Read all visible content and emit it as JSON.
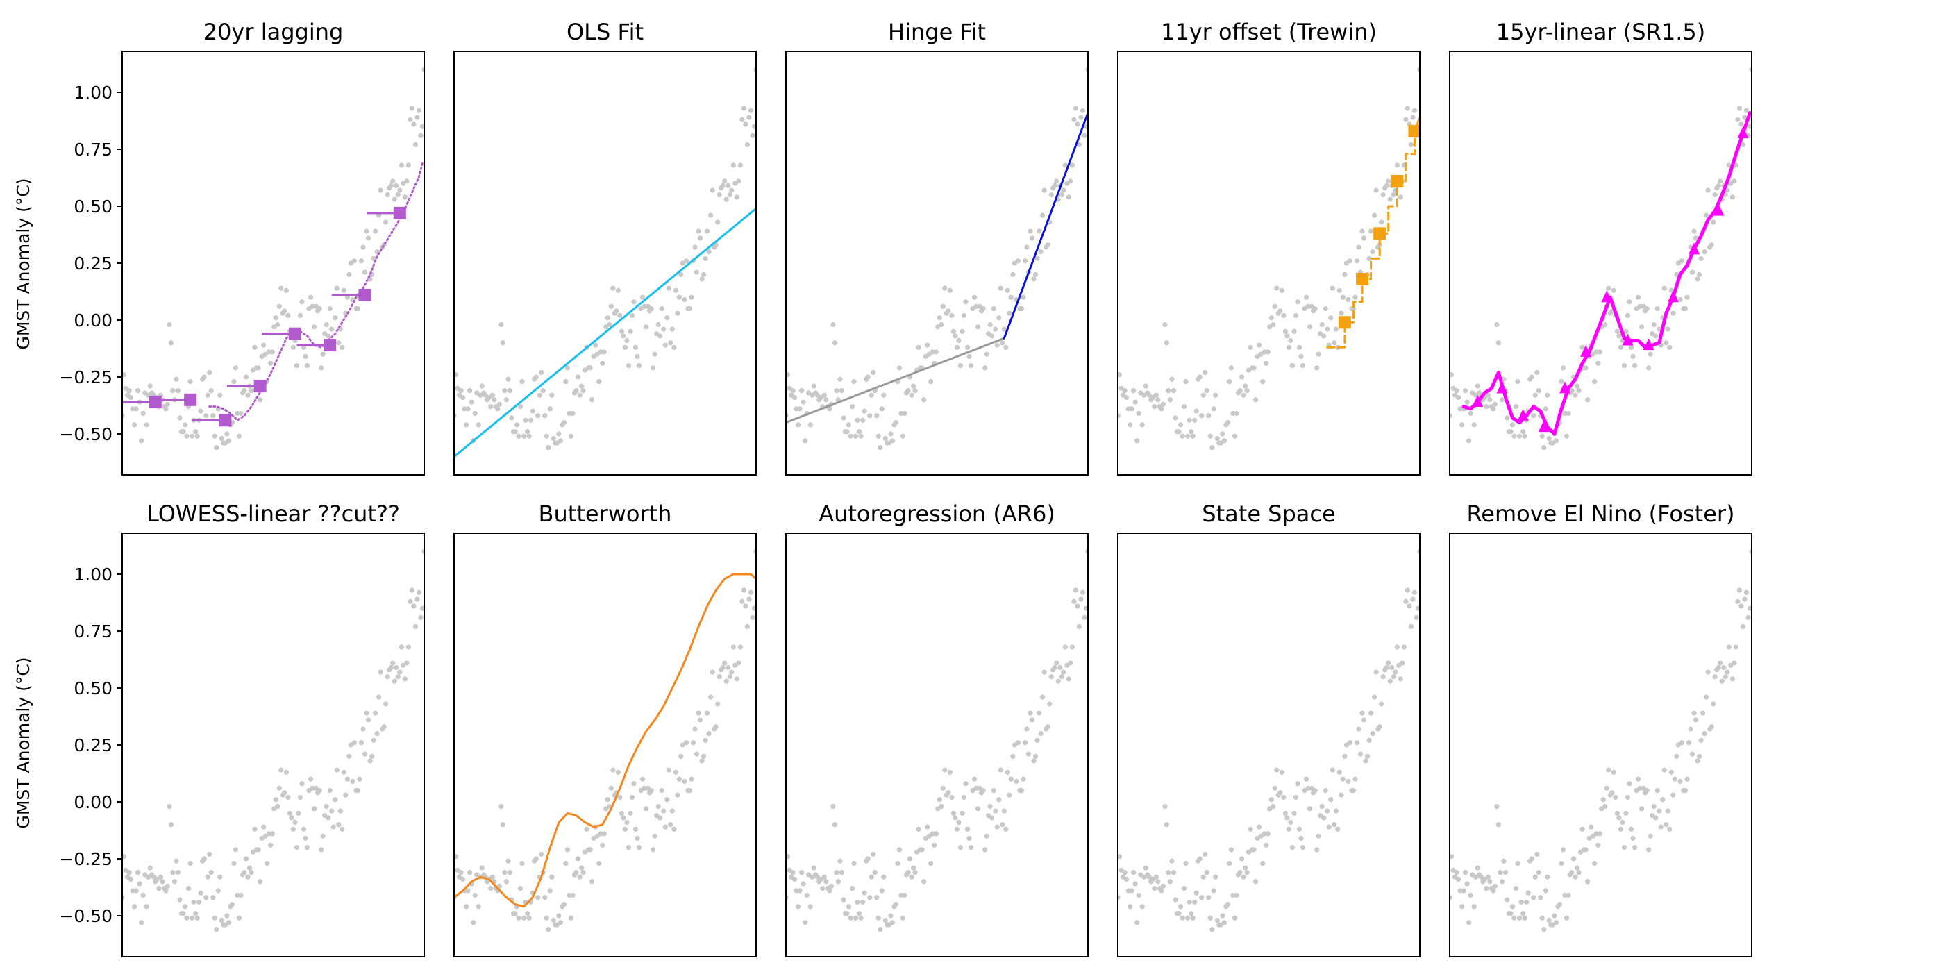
{
  "figure": {
    "xrange": [
      1850,
      2023
    ],
    "ylim": [
      -0.68,
      1.18
    ],
    "yticks": [
      -0.5,
      -0.25,
      0.0,
      0.25,
      0.5,
      0.75,
      1.0
    ],
    "ytick_labels": [
      "−0.50",
      "−0.25",
      "0.00",
      "0.25",
      "0.50",
      "0.75",
      "1.00"
    ],
    "ylabel": "GMST Anomaly (°C)",
    "background_points_color": "#c8c8c8"
  },
  "chart_data": {
    "type": "scatter",
    "observations": {
      "x": [
        1850,
        1851,
        1852,
        1853,
        1854,
        1855,
        1856,
        1857,
        1858,
        1859,
        1860,
        1861,
        1862,
        1863,
        1864,
        1865,
        1866,
        1867,
        1868,
        1869,
        1870,
        1871,
        1872,
        1873,
        1874,
        1875,
        1876,
        1877,
        1878,
        1879,
        1880,
        1881,
        1882,
        1883,
        1884,
        1885,
        1886,
        1887,
        1888,
        1889,
        1890,
        1891,
        1892,
        1893,
        1894,
        1895,
        1896,
        1897,
        1898,
        1899,
        1900,
        1901,
        1902,
        1903,
        1904,
        1905,
        1906,
        1907,
        1908,
        1909,
        1910,
        1911,
        1912,
        1913,
        1914,
        1915,
        1916,
        1917,
        1918,
        1919,
        1920,
        1921,
        1922,
        1923,
        1924,
        1925,
        1926,
        1927,
        1928,
        1929,
        1930,
        1931,
        1932,
        1933,
        1934,
        1935,
        1936,
        1937,
        1938,
        1939,
        1940,
        1941,
        1942,
        1943,
        1944,
        1945,
        1946,
        1947,
        1948,
        1949,
        1950,
        1951,
        1952,
        1953,
        1954,
        1955,
        1956,
        1957,
        1958,
        1959,
        1960,
        1961,
        1962,
        1963,
        1964,
        1965,
        1966,
        1967,
        1968,
        1969,
        1970,
        1971,
        1972,
        1973,
        1974,
        1975,
        1976,
        1977,
        1978,
        1979,
        1980,
        1981,
        1982,
        1983,
        1984,
        1985,
        1986,
        1987,
        1988,
        1989,
        1990,
        1991,
        1992,
        1993,
        1994,
        1995,
        1996,
        1997,
        1998,
        1999,
        2000,
        2001,
        2002,
        2003,
        2004,
        2005,
        2006,
        2007,
        2008,
        2009,
        2010,
        2011,
        2012,
        2013,
        2014,
        2015,
        2016,
        2017,
        2018,
        2019,
        2020,
        2021,
        2022,
        2023
      ],
      "y": [
        -0.42,
        -0.24,
        -0.3,
        -0.33,
        -0.31,
        -0.34,
        -0.39,
        -0.46,
        -0.39,
        -0.31,
        -0.36,
        -0.53,
        -0.41,
        -0.32,
        -0.46,
        -0.33,
        -0.29,
        -0.32,
        -0.33,
        -0.35,
        -0.34,
        -0.38,
        -0.33,
        -0.35,
        -0.38,
        -0.39,
        -0.37,
        -0.02,
        -0.1,
        -0.31,
        -0.35,
        -0.26,
        -0.31,
        -0.43,
        -0.49,
        -0.49,
        -0.46,
        -0.51,
        -0.38,
        -0.27,
        -0.51,
        -0.44,
        -0.49,
        -0.51,
        -0.44,
        -0.4,
        -0.26,
        -0.25,
        -0.42,
        -0.33,
        -0.23,
        -0.31,
        -0.42,
        -0.51,
        -0.56,
        -0.39,
        -0.33,
        -0.52,
        -0.54,
        -0.54,
        -0.5,
        -0.53,
        -0.46,
        -0.45,
        -0.27,
        -0.21,
        -0.41,
        -0.51,
        -0.41,
        -0.32,
        -0.31,
        -0.25,
        -0.33,
        -0.29,
        -0.31,
        -0.22,
        -0.12,
        -0.21,
        -0.21,
        -0.35,
        -0.16,
        -0.11,
        -0.15,
        -0.27,
        -0.14,
        -0.19,
        -0.14,
        -0.03,
        0.01,
        -0.02,
        0.06,
        0.14,
        0.03,
        0.04,
        0.13,
        0.02,
        -0.05,
        -0.07,
        -0.12,
        -0.09,
        -0.2,
        -0.05,
        0.02,
        0.08,
        -0.12,
        -0.16,
        -0.2,
        0.05,
        0.1,
        0.06,
        -0.03,
        0.06,
        0.04,
        0.05,
        -0.21,
        -0.15,
        -0.06,
        -0.02,
        -0.07,
        0.05,
        -0.04,
        -0.11,
        0.01,
        0.14,
        -0.1,
        -0.04,
        -0.12,
        0.13,
        0.03,
        0.1,
        0.2,
        0.25,
        0.09,
        0.26,
        0.05,
        0.05,
        0.1,
        0.26,
        0.32,
        0.21,
        0.39,
        0.36,
        0.18,
        0.2,
        0.27,
        0.39,
        0.3,
        0.46,
        0.57,
        0.32,
        0.33,
        0.43,
        0.55,
        0.58,
        0.59,
        0.61,
        0.53,
        0.59,
        0.55,
        0.57,
        0.68,
        0.6,
        0.54,
        0.61,
        0.68,
        0.88,
        0.93,
        0.86,
        0.77,
        0.89,
        0.92,
        0.81,
        0.85,
        1.1
      ]
    },
    "panels": [
      {
        "title": "20yr lagging",
        "color": "#b15acd",
        "lines": [
          {
            "x": [
              1900,
              1904,
              1908,
              1912,
              1916,
              1920,
              1924,
              1928,
              1932,
              1936,
              1940,
              1944,
              1948,
              1952,
              1956,
              1960,
              1964,
              1968,
              1972,
              1976,
              1980,
              1984,
              1988,
              1992,
              1996,
              2000,
              2004,
              2008,
              2012,
              2016,
              2020,
              2022
            ],
            "y": [
              -0.38,
              -0.38,
              -0.39,
              -0.41,
              -0.44,
              -0.42,
              -0.38,
              -0.33,
              -0.28,
              -0.22,
              -0.15,
              -0.08,
              -0.05,
              -0.05,
              -0.07,
              -0.11,
              -0.12,
              -0.09,
              -0.06,
              -0.01,
              0.04,
              0.1,
              0.14,
              0.2,
              0.28,
              0.33,
              0.38,
              0.43,
              0.49,
              0.56,
              0.63,
              0.69
            ],
            "width": 3,
            "dash": "2,4"
          }
        ],
        "segments": [
          {
            "x0": 1850,
            "x1": 1869,
            "y": -0.36
          },
          {
            "x0": 1870,
            "x1": 1889,
            "y": -0.35
          },
          {
            "x0": 1890,
            "x1": 1909,
            "y": -0.44
          },
          {
            "x0": 1910,
            "x1": 1929,
            "y": -0.29
          },
          {
            "x0": 1930,
            "x1": 1949,
            "y": -0.06
          },
          {
            "x0": 1950,
            "x1": 1969,
            "y": -0.11
          },
          {
            "x0": 1970,
            "x1": 1989,
            "y": 0.11
          },
          {
            "x0": 1990,
            "x1": 2009,
            "y": 0.47
          }
        ],
        "squares": {
          "x": [
            1869,
            1889,
            1909,
            1929,
            1949,
            1969,
            1989,
            2009
          ],
          "y": [
            -0.36,
            -0.35,
            -0.44,
            -0.29,
            -0.06,
            -0.11,
            0.11,
            0.47
          ]
        }
      },
      {
        "title": "OLS Fit",
        "color": "#16bfee",
        "lines": [
          {
            "x": [
              1850,
              2023
            ],
            "y": [
              -0.6,
              0.49
            ],
            "width": 3
          }
        ]
      },
      {
        "title": "Hinge Fit",
        "color": "#0a10d8",
        "lines": [
          {
            "x": [
              1850,
              1975
            ],
            "y": [
              -0.45,
              -0.08
            ],
            "width": 3,
            "color": "#999999"
          },
          {
            "x": [
              1975,
              2023
            ],
            "y": [
              -0.08,
              0.91
            ],
            "width": 3
          }
        ]
      },
      {
        "title": "11yr offset (Trewin)",
        "color": "#f5a00f",
        "lines": [
          {
            "x": [
              1970,
              1980,
              1980,
              1985,
              1985,
              1990,
              1990,
              1995,
              1995,
              2000,
              2000,
              2005,
              2005,
              2010,
              2010,
              2015,
              2015,
              2020,
              2020,
              2023
            ],
            "y": [
              -0.12,
              -0.12,
              -0.01,
              -0.01,
              0.08,
              0.08,
              0.18,
              0.18,
              0.27,
              0.27,
              0.38,
              0.38,
              0.5,
              0.5,
              0.61,
              0.61,
              0.73,
              0.73,
              0.83,
              0.89
            ],
            "width": 3,
            "dash": "10,6"
          }
        ],
        "squares": {
          "x": [
            1980,
            1990,
            2000,
            2010,
            2020
          ],
          "y": [
            -0.01,
            0.18,
            0.38,
            0.61,
            0.83
          ]
        }
      },
      {
        "title": "15yr-linear (SR1.5)",
        "color": "#ff00ff",
        "lines": [
          {
            "x": [
              1858,
              1862,
              1866,
              1870,
              1874,
              1878,
              1882,
              1886,
              1890,
              1894,
              1898,
              1902,
              1906,
              1910,
              1914,
              1918,
              1922,
              1926,
              1930,
              1934,
              1938,
              1942,
              1946,
              1950,
              1954,
              1958,
              1962,
              1966,
              1970,
              1974,
              1978,
              1982,
              1986,
              1990,
              1994,
              1998,
              2002,
              2006,
              2010,
              2014,
              2018,
              2022
            ],
            "y": [
              -0.38,
              -0.39,
              -0.36,
              -0.32,
              -0.3,
              -0.23,
              -0.34,
              -0.43,
              -0.45,
              -0.42,
              -0.38,
              -0.4,
              -0.47,
              -0.5,
              -0.39,
              -0.3,
              -0.26,
              -0.19,
              -0.14,
              -0.06,
              0.02,
              0.1,
              0.01,
              -0.08,
              -0.09,
              -0.09,
              -0.12,
              -0.11,
              -0.1,
              0.03,
              0.1,
              0.2,
              0.24,
              0.31,
              0.37,
              0.44,
              0.48,
              0.55,
              0.63,
              0.73,
              0.82,
              0.91
            ],
            "width": 5
          }
        ],
        "arrows": {
          "x": [
            1866,
            1880,
            1892,
            1904,
            1916,
            1928,
            1940,
            1952,
            1964,
            1978,
            1990,
            2004,
            2018
          ],
          "y": [
            -0.36,
            -0.3,
            -0.42,
            -0.47,
            -0.3,
            -0.14,
            0.1,
            -0.09,
            -0.11,
            0.1,
            0.31,
            0.48,
            0.82
          ]
        }
      },
      {
        "title": "LOWESS-linear ??cut??",
        "color": "#000000",
        "lines": []
      },
      {
        "title": "Butterworth",
        "color": "#f5871f",
        "lines": [
          {
            "x": [
              1850,
              1855,
              1860,
              1865,
              1870,
              1875,
              1880,
              1885,
              1890,
              1895,
              1900,
              1905,
              1910,
              1915,
              1920,
              1925,
              1930,
              1935,
              1940,
              1945,
              1950,
              1955,
              1960,
              1965,
              1970,
              1975,
              1980,
              1985,
              1990,
              1995,
              2000,
              2005,
              2010,
              2015,
              2020,
              2023
            ],
            "y": [
              -0.42,
              -0.39,
              -0.35,
              -0.33,
              -0.34,
              -0.38,
              -0.42,
              -0.45,
              -0.46,
              -0.42,
              -0.33,
              -0.2,
              -0.09,
              -0.05,
              -0.06,
              -0.09,
              -0.11,
              -0.1,
              -0.03,
              0.06,
              0.16,
              0.24,
              0.31,
              0.36,
              0.42,
              0.5,
              0.58,
              0.67,
              0.77,
              0.86,
              0.93,
              0.98,
              1.0,
              1.0,
              1.0,
              0.98
            ],
            "width": 3
          }
        ]
      },
      {
        "title": "Autoregression (AR6)",
        "color": "#000000",
        "lines": []
      },
      {
        "title": "State Space",
        "color": "#000000",
        "lines": []
      },
      {
        "title": "Remove El Nino (Foster)",
        "color": "#000000",
        "lines": []
      }
    ]
  }
}
